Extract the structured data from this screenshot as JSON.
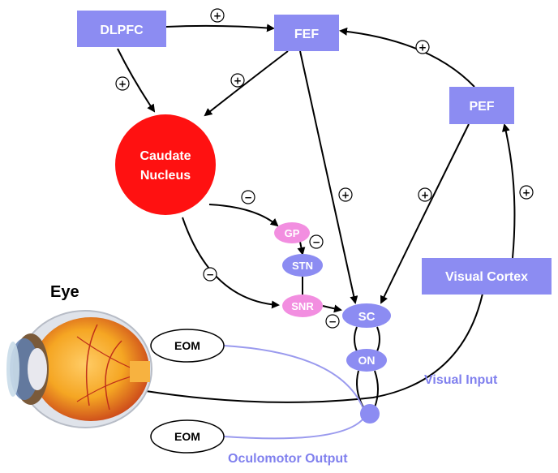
{
  "nodes": {
    "dlpfc": "DLPFC",
    "fef": "FEF",
    "pef": "PEF",
    "caudate_line1": "Caudate",
    "caudate_line2": "Nucleus",
    "gp": "GP",
    "stn": "STN",
    "snr": "SNR",
    "sc": "SC",
    "on": "ON",
    "visual_cortex": "Visual Cortex",
    "eom_top": "EOM",
    "eom_bottom": "EOM"
  },
  "labels": {
    "eye": "Eye",
    "visual_input": "Visual Input",
    "oculomotor_output": "Oculomotor Output"
  },
  "signs": {
    "excitatory": "+",
    "inhibitory": "−"
  },
  "colors": {
    "box": "#8c8cf2",
    "caudate": "#ff1111",
    "pink": "#f28ee0",
    "output_line": "#9a9aee"
  }
}
